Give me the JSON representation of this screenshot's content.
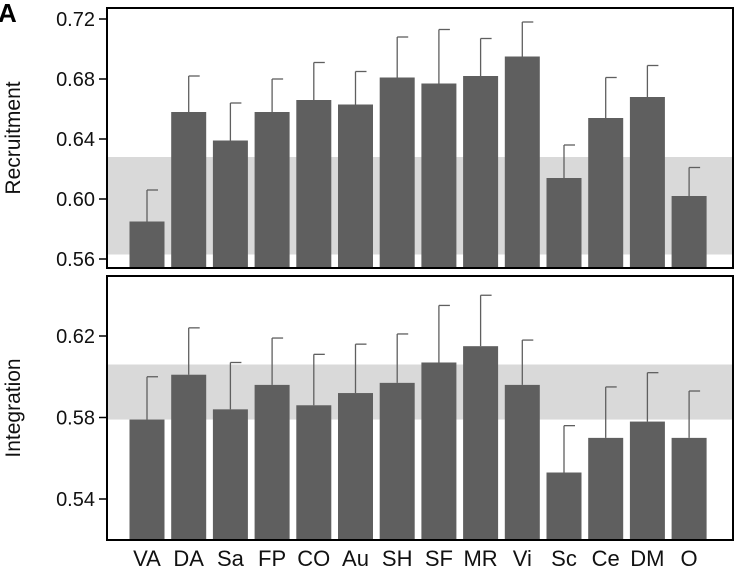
{
  "panel_label": "A",
  "colors": {
    "bar": "#5f5f5f",
    "band": "#d9d9d9",
    "frame": "#000000"
  },
  "chart_data": [
    {
      "type": "bar",
      "name": "recruitment-panel",
      "ylabel": "Recruitment",
      "ylim": [
        0.56,
        0.72
      ],
      "yticks": [
        "0.56",
        "0.60",
        "0.64",
        "0.68",
        "0.72"
      ],
      "band": [
        0.563,
        0.628
      ],
      "categories": [
        "VA",
        "DA",
        "Sa",
        "FP",
        "CO",
        "Au",
        "SH",
        "SF",
        "MR",
        "Vi",
        "Sc",
        "Ce",
        "DM",
        "O"
      ],
      "values": [
        0.585,
        0.658,
        0.639,
        0.658,
        0.666,
        0.663,
        0.681,
        0.677,
        0.682,
        0.695,
        0.614,
        0.654,
        0.668,
        0.602
      ],
      "errors": [
        0.021,
        0.024,
        0.025,
        0.022,
        0.025,
        0.022,
        0.027,
        0.036,
        0.025,
        0.023,
        0.022,
        0.027,
        0.021,
        0.019
      ]
    },
    {
      "type": "bar",
      "name": "integration-panel",
      "ylabel": "Integration",
      "ylim": [
        0.52,
        0.64
      ],
      "yticks": [
        "0.54",
        "0.58",
        "0.62"
      ],
      "band": [
        0.579,
        0.606
      ],
      "categories": [
        "VA",
        "DA",
        "Sa",
        "FP",
        "CO",
        "Au",
        "SH",
        "SF",
        "MR",
        "Vi",
        "Sc",
        "Ce",
        "DM",
        "O"
      ],
      "values": [
        0.579,
        0.601,
        0.584,
        0.596,
        0.586,
        0.592,
        0.597,
        0.607,
        0.615,
        0.596,
        0.553,
        0.57,
        0.578,
        0.57
      ],
      "errors": [
        0.021,
        0.023,
        0.023,
        0.023,
        0.025,
        0.024,
        0.024,
        0.028,
        0.025,
        0.022,
        0.023,
        0.025,
        0.024,
        0.023
      ]
    }
  ],
  "x_categories": [
    "VA",
    "DA",
    "Sa",
    "FP",
    "CO",
    "Au",
    "SH",
    "SF",
    "MR",
    "Vi",
    "Sc",
    "Ce",
    "DM",
    "O"
  ]
}
